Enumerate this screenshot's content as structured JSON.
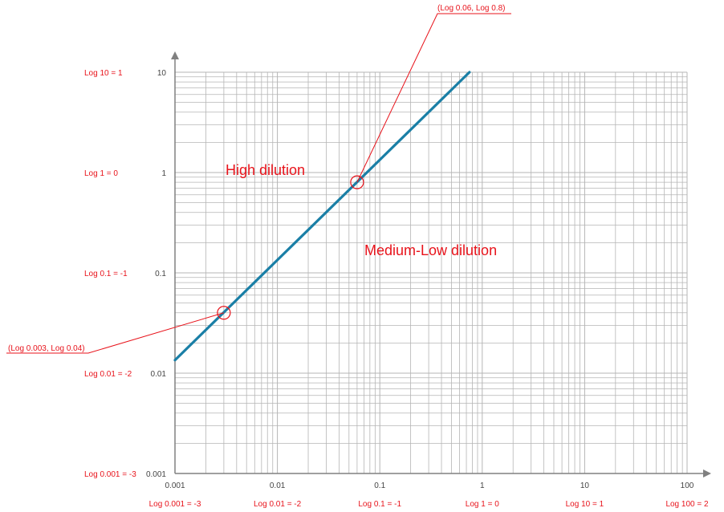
{
  "chart_data": {
    "type": "line",
    "x_scale": "log",
    "y_scale": "log",
    "xlim": [
      0.001,
      100
    ],
    "ylim": [
      0.001,
      10
    ],
    "grid": true,
    "grid_minor": true,
    "x_ticks": [
      "0.001",
      "0.01",
      "0.1",
      "1",
      "10",
      "100"
    ],
    "y_ticks": [
      "0.001",
      "0.01",
      "0.1",
      "1",
      "10"
    ],
    "x_tick_values": [
      0.001,
      0.01,
      0.1,
      1,
      10,
      100
    ],
    "y_tick_values": [
      0.001,
      0.01,
      0.1,
      1,
      10
    ],
    "x_log_labels": [
      "Log 0.001 = -3",
      "Log 0.01 = -2",
      "Log 0.1 = -1",
      "Log 1 = 0",
      "Log 10 = 1",
      "Log 100 = 2"
    ],
    "y_log_labels": [
      "Log 0.001 = -3",
      "Log 0.01 = -2",
      "Log 0.1 = -1",
      "Log 1 = 0",
      "Log 10 = 1"
    ],
    "series": [
      {
        "x": [
          0.001,
          0.75
        ],
        "y": [
          0.0135,
          10
        ],
        "color": "#1a7fa6"
      }
    ],
    "points": [
      {
        "x": 0.003,
        "y": 0.04,
        "label": "(Log 0.003, Log 0.04)"
      },
      {
        "x": 0.06,
        "y": 0.8,
        "label": "(Log 0.06, Log 0.8)"
      }
    ],
    "regions": [
      {
        "label": "High dilution"
      },
      {
        "label": "Medium-Low dilution"
      }
    ],
    "colors": {
      "line": "#1a7fa6",
      "annotation": "#e8131b",
      "grid": "#b5b5b5",
      "axis": "#808080"
    }
  }
}
